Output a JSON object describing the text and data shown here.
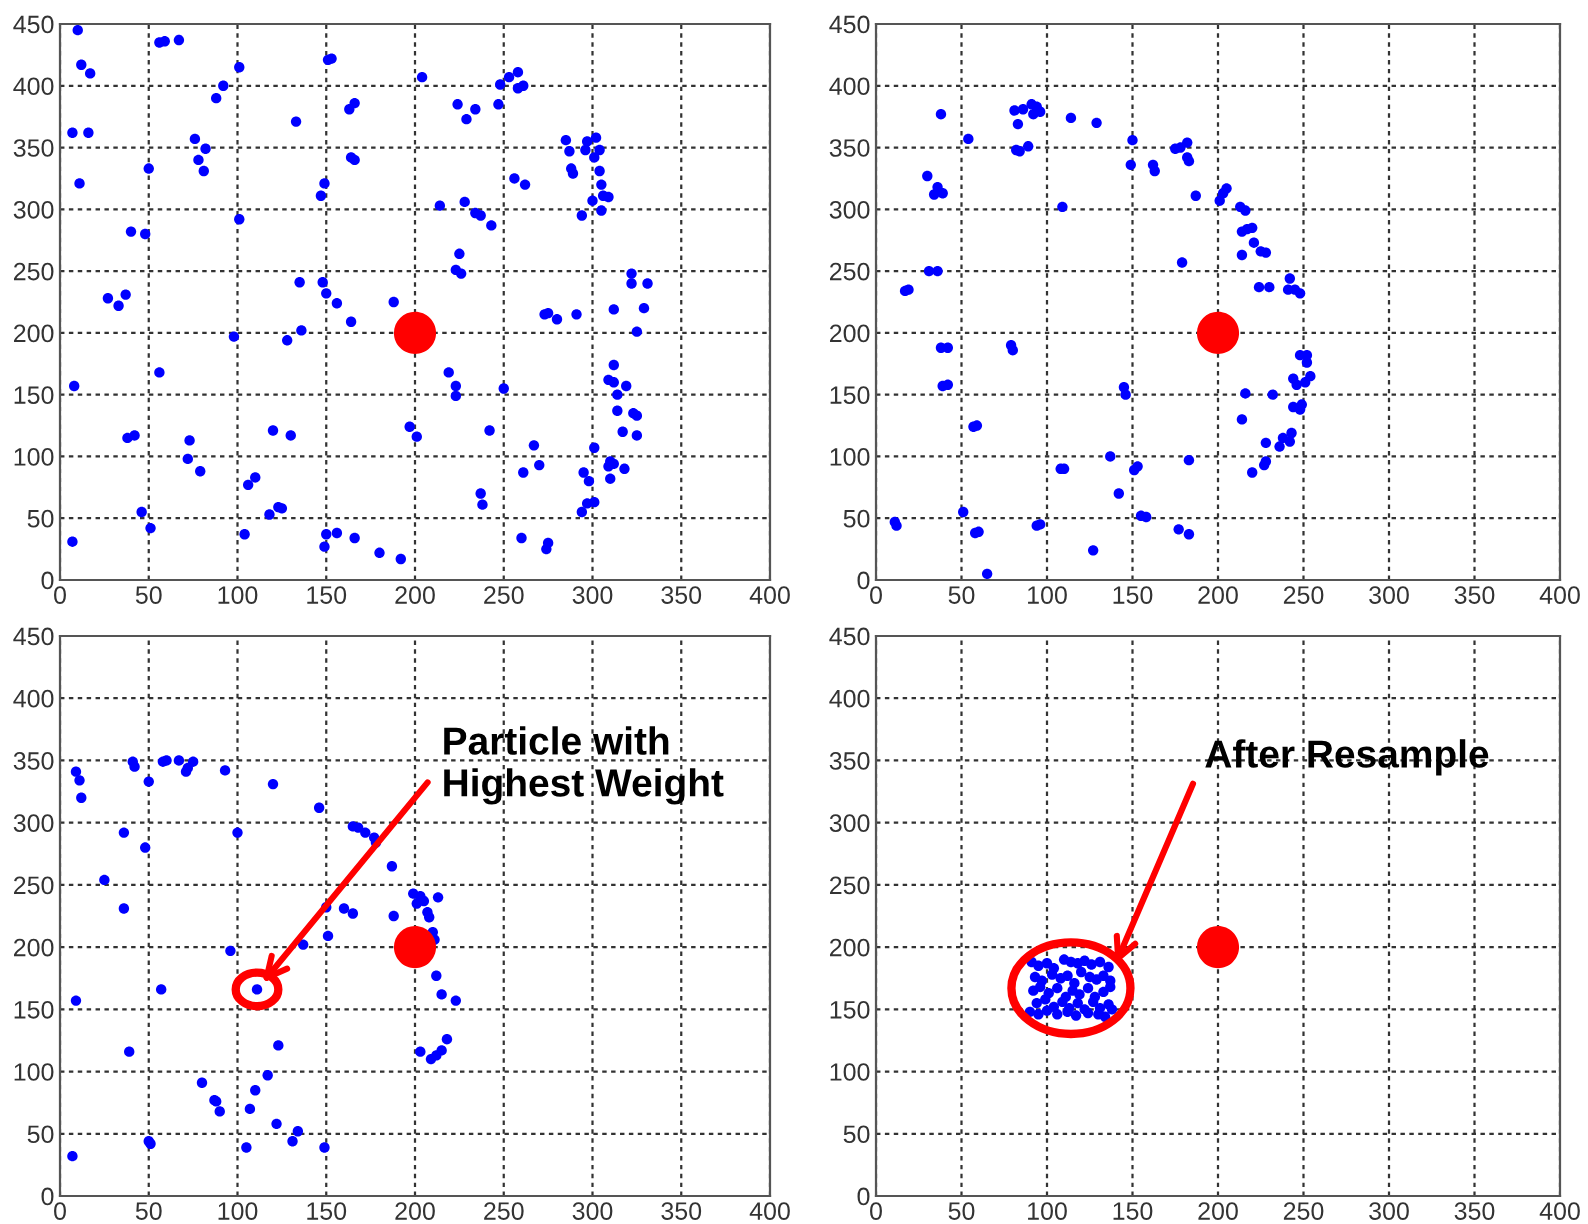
{
  "chart_data": [
    {
      "type": "scatter",
      "xlim": [
        0,
        400
      ],
      "ylim": [
        0,
        450
      ],
      "xticks": [
        0,
        50,
        100,
        150,
        200,
        250,
        300,
        350,
        400
      ],
      "yticks": [
        0,
        50,
        100,
        150,
        200,
        250,
        300,
        350,
        400,
        450
      ],
      "grid": true,
      "marker": "circle",
      "series": [
        {
          "color": "#0000ff",
          "x": [
            10,
            12,
            17,
            7,
            16,
            11,
            8,
            7,
            40,
            48,
            27,
            33,
            37,
            38,
            42,
            46,
            51,
            50,
            56,
            59,
            67,
            56,
            76,
            78,
            82,
            81,
            88,
            92,
            101,
            101,
            98,
            73,
            72,
            79,
            106,
            110,
            104,
            118,
            120,
            123,
            125,
            130,
            128,
            133,
            135,
            136,
            147,
            149,
            148,
            150,
            151,
            153,
            156,
            164,
            163,
            166,
            164,
            166,
            149,
            150,
            156,
            166,
            180,
            192,
            188,
            197,
            201,
            204,
            214,
            219,
            223,
            223,
            223,
            225,
            226,
            224,
            228,
            229,
            234,
            234,
            237,
            243,
            242,
            237,
            238,
            250,
            247,
            248,
            253,
            258,
            258,
            261,
            256,
            262,
            260,
            261,
            267,
            270,
            273,
            275,
            280,
            274,
            275,
            285,
            287,
            288,
            289,
            291,
            294,
            294,
            295,
            298,
            297,
            301,
            301,
            297,
            296,
            300,
            301,
            302,
            304,
            304,
            305,
            305,
            306,
            309,
            310,
            309,
            312,
            318,
            310,
            309,
            312,
            312,
            314,
            314,
            317,
            319,
            323,
            325,
            325,
            312,
            322,
            322,
            325,
            329,
            331
          ],
          "values": [
            445,
            417,
            410,
            362,
            362,
            321,
            157,
            31,
            282,
            280,
            228,
            222,
            231,
            115,
            117,
            55,
            42,
            333,
            435,
            436,
            437,
            168,
            357,
            340,
            349,
            331,
            390,
            400,
            415,
            292,
            197,
            113,
            98,
            88,
            77,
            83,
            37,
            53,
            121,
            59,
            58,
            117,
            194,
            371,
            241,
            202,
            311,
            321,
            241,
            232,
            421,
            422,
            224,
            209,
            381,
            386,
            342,
            340,
            27,
            37,
            38,
            34,
            22,
            17,
            225,
            124,
            116,
            407,
            303,
            168,
            157,
            149,
            251,
            264,
            248,
            385,
            306,
            373,
            381,
            297,
            295,
            287,
            121,
            70,
            61,
            155,
            385,
            401,
            407,
            411,
            398,
            400,
            325,
            320,
            34,
            87,
            109,
            93,
            215,
            216,
            211,
            25,
            30,
            356,
            347,
            333,
            329,
            215,
            295,
            55,
            87,
            80,
            62,
            63,
            107,
            355,
            348,
            307,
            342,
            358,
            348,
            331,
            320,
            299,
            311,
            310,
            96,
            92,
            94,
            90,
            82,
            162,
            160,
            174,
            150,
            137,
            120,
            157,
            135,
            133,
            117,
            219,
            240,
            248,
            201,
            220,
            240
          ]
        },
        {
          "color": "#ff0000",
          "x": [
            200
          ],
          "values": [
            200
          ]
        }
      ]
    },
    {
      "type": "scatter",
      "xlim": [
        0,
        400
      ],
      "ylim": [
        0,
        450
      ],
      "xticks": [
        0,
        50,
        100,
        150,
        200,
        250,
        300,
        350,
        400
      ],
      "yticks": [
        0,
        50,
        100,
        150,
        200,
        250,
        300,
        350,
        400,
        450
      ],
      "grid": true,
      "marker": "circle",
      "series": [
        {
          "color": "#0000ff",
          "x": [
            11,
            12,
            17,
            19,
            30,
            31,
            36,
            34,
            36,
            39,
            38,
            38,
            42,
            39,
            42,
            51,
            54,
            57,
            59,
            58,
            60,
            65,
            79,
            80,
            81,
            82,
            84,
            83,
            86,
            89,
            91,
            94,
            92,
            96,
            94,
            96,
            108,
            110,
            109,
            114,
            129,
            127,
            137,
            142,
            145,
            146,
            149,
            150,
            151,
            153,
            155,
            158,
            162,
            163,
            175,
            178,
            182,
            179,
            177,
            183,
            183,
            182,
            183,
            187,
            201,
            203,
            205,
            213,
            216,
            214,
            217,
            220,
            221,
            214,
            225,
            228,
            224,
            230,
            216,
            214,
            220,
            228,
            227,
            228,
            232,
            236,
            238,
            242,
            243,
            242,
            241,
            245,
            248,
            244,
            246,
            249,
            244,
            248,
            248,
            252,
            252,
            254,
            251
          ],
          "values": [
            47,
            44,
            234,
            235,
            327,
            250,
            250,
            312,
            318,
            313,
            377,
            188,
            188,
            157,
            158,
            55,
            357,
            124,
            125,
            38,
            39,
            5,
            190,
            186,
            380,
            348,
            347,
            369,
            381,
            351,
            385,
            383,
            377,
            379,
            44,
            45,
            90,
            90,
            302,
            374,
            370,
            24,
            100,
            70,
            156,
            150,
            336,
            356,
            89,
            92,
            52,
            51,
            336,
            331,
            349,
            350,
            354,
            257,
            41,
            37,
            97,
            342,
            339,
            311,
            307,
            313,
            317,
            302,
            299,
            282,
            284,
            285,
            273,
            263,
            266,
            265,
            237,
            237,
            151,
            130,
            87,
            111,
            93,
            96,
            150,
            108,
            115,
            112,
            119,
            244,
            235,
            235,
            232,
            163,
            158,
            142,
            140,
            138,
            182,
            182,
            176,
            165,
            160
          ]
        },
        {
          "color": "#ff0000",
          "x": [
            200
          ],
          "values": [
            200
          ]
        }
      ]
    },
    {
      "type": "scatter",
      "xlim": [
        0,
        400
      ],
      "ylim": [
        0,
        450
      ],
      "xticks": [
        0,
        50,
        100,
        150,
        200,
        250,
        300,
        350,
        400
      ],
      "yticks": [
        0,
        50,
        100,
        150,
        200,
        250,
        300,
        350,
        400,
        450
      ],
      "grid": true,
      "marker": "circle",
      "annotations": [
        {
          "text": "Particle with\nHighest Weight",
          "x": 111,
          "y": 166
        }
      ],
      "series": [
        {
          "color": "#0000ff",
          "x": [
            7,
            9,
            11,
            12,
            9,
            25,
            36,
            36,
            39,
            41,
            42,
            48,
            50,
            50,
            51,
            57,
            58,
            60,
            67,
            71,
            72,
            75,
            80,
            87,
            88,
            90,
            93,
            96,
            100,
            105,
            107,
            110,
            111,
            117,
            120,
            122,
            123,
            131,
            134,
            137,
            146,
            149,
            150,
            151,
            160,
            165,
            165,
            168,
            172,
            177,
            178,
            187,
            188,
            199,
            203,
            201,
            205,
            207,
            208,
            210,
            211,
            212,
            215,
            223,
            203,
            209,
            212,
            215,
            218,
            213
          ],
          "values": [
            32,
            341,
            334,
            320,
            157,
            254,
            292,
            231,
            116,
            349,
            345,
            280,
            333,
            44,
            42,
            166,
            349,
            350,
            350,
            341,
            344,
            349,
            91,
            77,
            76,
            68,
            342,
            197,
            292,
            39,
            70,
            85,
            166,
            97,
            331,
            58,
            121,
            44,
            52,
            202,
            312,
            39,
            232,
            209,
            231,
            227,
            297,
            296,
            292,
            288,
            284,
            265,
            225,
            243,
            241,
            235,
            237,
            228,
            224,
            212,
            206,
            177,
            162,
            157,
            116,
            110,
            113,
            117,
            126,
            240
          ]
        },
        {
          "color": "#ff0000",
          "x": [
            200
          ],
          "values": [
            200
          ]
        }
      ]
    },
    {
      "type": "scatter",
      "xlim": [
        0,
        400
      ],
      "ylim": [
        0,
        450
      ],
      "xticks": [
        0,
        50,
        100,
        150,
        200,
        250,
        300,
        350,
        400
      ],
      "yticks": [
        0,
        50,
        100,
        150,
        200,
        250,
        300,
        350,
        400,
        450
      ],
      "grid": true,
      "marker": "circle",
      "annotations": [
        {
          "text": "After Resample",
          "x": 140,
          "y": 186
        }
      ],
      "series": [
        {
          "color": "#0000ff",
          "x": [
            91,
            95,
            100,
            104,
            110,
            114,
            118,
            122,
            126,
            131,
            136,
            93,
            97,
            103,
            108,
            112,
            116,
            120,
            125,
            129,
            133,
            137,
            92,
            96,
            101,
            106,
            111,
            115,
            119,
            124,
            128,
            133,
            137,
            94,
            99,
            104,
            109,
            113,
            118,
            122,
            127,
            131,
            136,
            90,
            95,
            100,
            106,
            112,
            117,
            124,
            130,
            134,
            138
          ],
          "values": [
            188,
            185,
            187,
            183,
            190,
            188,
            187,
            189,
            186,
            188,
            184,
            176,
            173,
            178,
            175,
            177,
            171,
            180,
            176,
            174,
            177,
            173,
            165,
            168,
            163,
            167,
            160,
            165,
            162,
            167,
            160,
            164,
            168,
            155,
            158,
            152,
            156,
            151,
            155,
            150,
            156,
            151,
            154,
            148,
            146,
            149,
            146,
            148,
            145,
            147,
            146,
            144,
            150
          ]
        },
        {
          "color": "#ff0000",
          "x": [
            200
          ],
          "values": [
            200
          ]
        }
      ]
    }
  ]
}
